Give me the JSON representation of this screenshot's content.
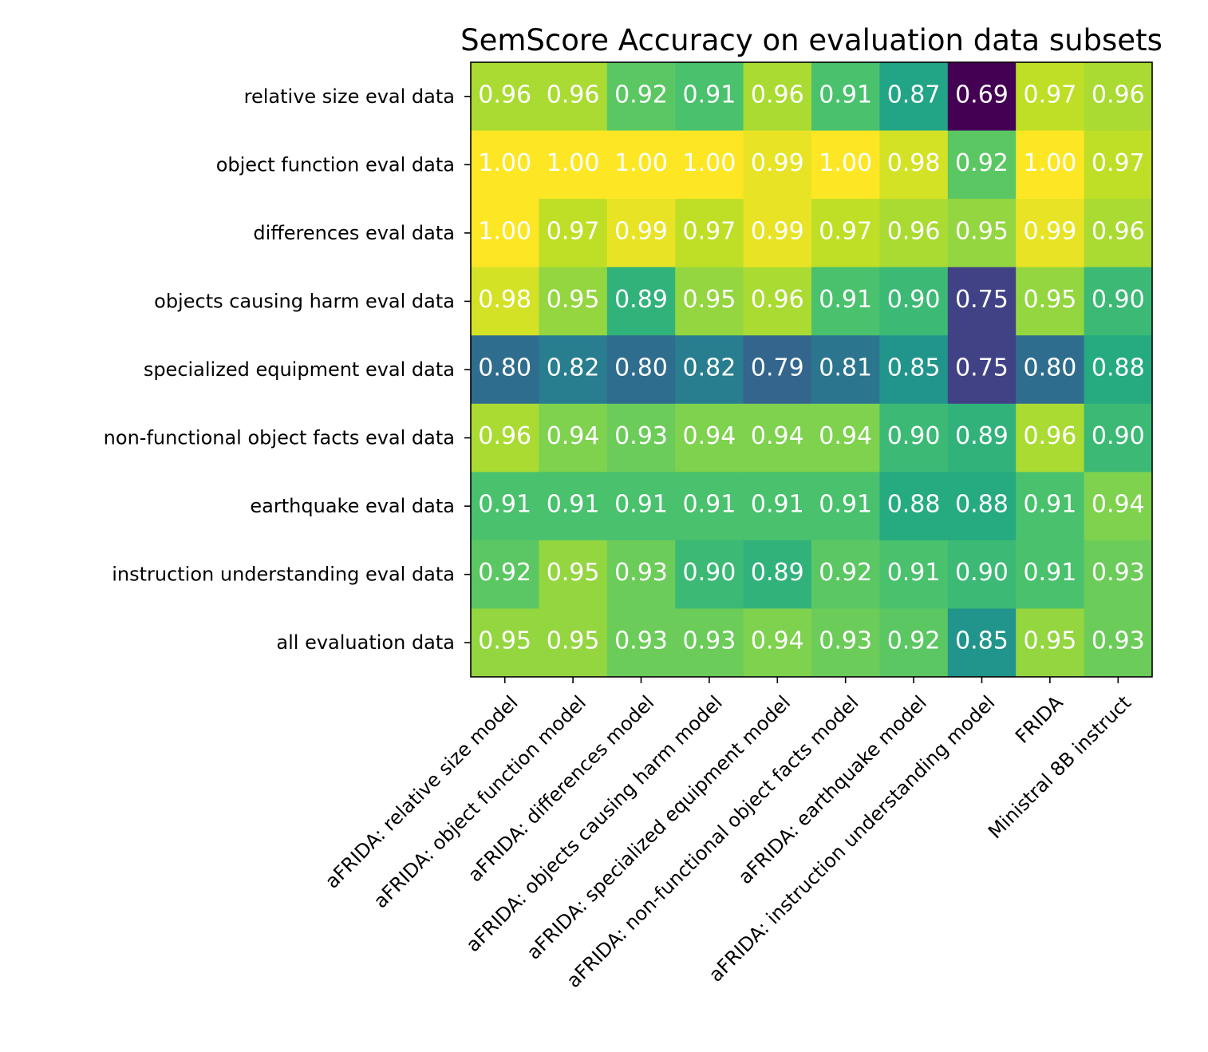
{
  "chart_data": {
    "type": "heatmap",
    "title": "SemScore Accuracy on evaluation data subsets",
    "xlabel": "",
    "ylabel": "",
    "colormap": "viridis",
    "value_range": [
      0.69,
      1.0
    ],
    "x_categories": [
      "aFRIDA: relative size model",
      "aFRIDA: object function model",
      "aFRIDA: differences model",
      "aFRIDA: objects causing harm model",
      "aFRIDA: specialized equipment model",
      "aFRIDA: non-functional object facts model",
      "aFRIDA: earthquake model",
      "aFRIDA: instruction understanding model",
      "FRIDA",
      "Ministral 8B instruct"
    ],
    "y_categories": [
      "relative size eval data",
      "object function eval data",
      "differences eval data",
      "objects causing harm eval data",
      "specialized equipment eval data",
      "non-functional object facts eval data",
      "earthquake eval data",
      "instruction understanding eval data",
      "all evaluation data"
    ],
    "values": [
      [
        0.96,
        0.96,
        0.92,
        0.91,
        0.96,
        0.91,
        0.87,
        0.69,
        0.97,
        0.96
      ],
      [
        1.0,
        1.0,
        1.0,
        1.0,
        0.99,
        1.0,
        0.98,
        0.92,
        1.0,
        0.97
      ],
      [
        1.0,
        0.97,
        0.99,
        0.97,
        0.99,
        0.97,
        0.96,
        0.95,
        0.99,
        0.96
      ],
      [
        0.98,
        0.95,
        0.89,
        0.95,
        0.96,
        0.91,
        0.9,
        0.75,
        0.95,
        0.9
      ],
      [
        0.8,
        0.82,
        0.8,
        0.82,
        0.79,
        0.81,
        0.85,
        0.75,
        0.8,
        0.88
      ],
      [
        0.96,
        0.94,
        0.93,
        0.94,
        0.94,
        0.94,
        0.9,
        0.89,
        0.96,
        0.9
      ],
      [
        0.91,
        0.91,
        0.91,
        0.91,
        0.91,
        0.91,
        0.88,
        0.88,
        0.91,
        0.94
      ],
      [
        0.92,
        0.95,
        0.93,
        0.9,
        0.89,
        0.92,
        0.91,
        0.9,
        0.91,
        0.93
      ],
      [
        0.95,
        0.95,
        0.93,
        0.93,
        0.94,
        0.93,
        0.92,
        0.85,
        0.95,
        0.93
      ]
    ],
    "value_format": "0.00"
  }
}
